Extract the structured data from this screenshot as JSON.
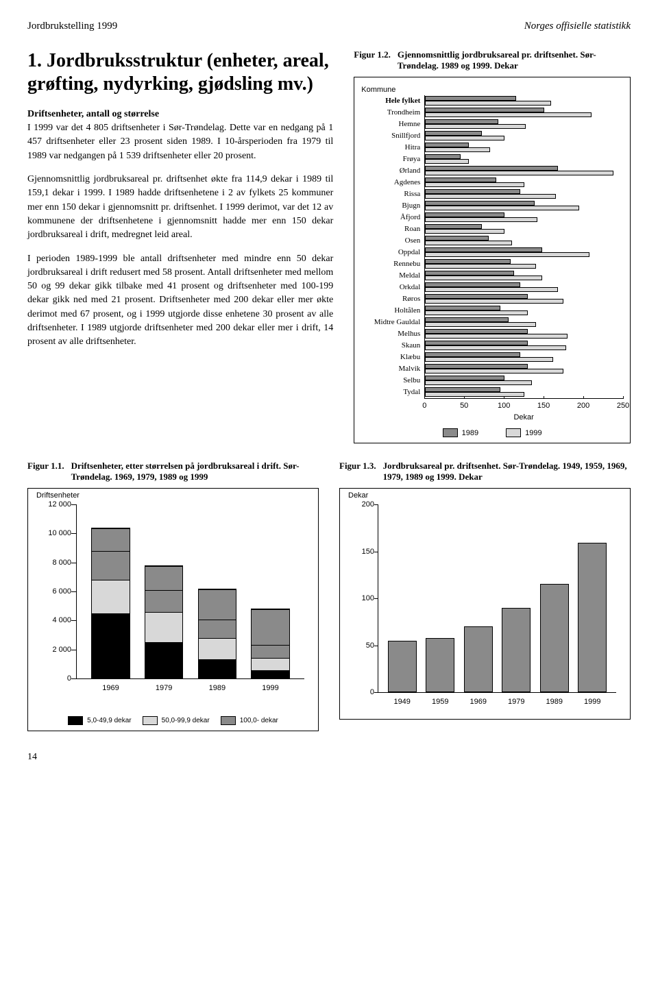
{
  "header": {
    "left": "Jordbrukstelling 1999",
    "right": "Norges offisielle statistikk"
  },
  "title": "1. Jordbruksstruktur (enheter, areal, grøfting, nydyrking, gjødsling mv.)",
  "subhead": "Driftsenheter, antall og størrelse",
  "para1": "I 1999 var det 4 805 driftsenheter i Sør-Trøndelag. Dette var en nedgang på 1 457 driftsenheter eller 23 prosent siden 1989. I 10-årsperioden fra 1979 til 1989 var nedgangen på 1 539 driftsenheter eller 20 prosent.",
  "para2": "Gjennomsnittlig jordbruksareal pr. driftsenhet økte fra 114,9 dekar i 1989 til 159,1 dekar i 1999. I 1989 hadde driftsenhetene i 2 av fylkets 25 kommuner mer enn 150 dekar i gjennomsnitt pr. driftsenhet. I 1999 derimot, var det 12 av kommunene der driftsenhetene i gjennomsnitt hadde mer enn 150 dekar jordbruksareal i drift, medregnet leid areal.",
  "para3": "I perioden 1989-1999 ble antall driftsenheter med mindre enn 50 dekar jordbruksareal i drift redusert med 58 prosent. Antall driftsenheter med mellom 50 og 99 dekar gikk tilbake med 41 prosent og driftsenheter med 100-199 dekar gikk ned med 21 prosent. Driftsenheter med 200 dekar eller mer økte derimot med 67 prosent, og i 1999 utgjorde disse enhetene 30 prosent av alle driftsenheter. I 1989 utgjorde driftsenheter med 200 dekar eller mer i drift, 14 prosent av alle driftsenheter.",
  "fig12": {
    "num": "Figur 1.2.",
    "title": "Gjennomsnittlig jordbruksareal pr. driftsenhet. Sør-Trøndelag. 1989 og 1999. Dekar",
    "ylabel_top": "Kommune",
    "axis_label": "Dekar",
    "max": 250,
    "ticks": [
      0,
      50,
      100,
      150,
      200,
      250
    ],
    "rows": [
      {
        "label": "Hele fylket",
        "v89": 115,
        "v99": 159,
        "bold": true
      },
      {
        "label": "Trondheim",
        "v89": 150,
        "v99": 210
      },
      {
        "label": "Hemne",
        "v89": 92,
        "v99": 127
      },
      {
        "label": "Snillfjord",
        "v89": 72,
        "v99": 100
      },
      {
        "label": "Hitra",
        "v89": 55,
        "v99": 82
      },
      {
        "label": "Frøya",
        "v89": 45,
        "v99": 55
      },
      {
        "label": "Ørland",
        "v89": 168,
        "v99": 238
      },
      {
        "label": "Agdenes",
        "v89": 90,
        "v99": 125
      },
      {
        "label": "Rissa",
        "v89": 120,
        "v99": 165
      },
      {
        "label": "Bjugn",
        "v89": 138,
        "v99": 195
      },
      {
        "label": "Åfjord",
        "v89": 100,
        "v99": 142
      },
      {
        "label": "Roan",
        "v89": 72,
        "v99": 100
      },
      {
        "label": "Osen",
        "v89": 80,
        "v99": 110
      },
      {
        "label": "Oppdal",
        "v89": 148,
        "v99": 208
      },
      {
        "label": "Rennebu",
        "v89": 108,
        "v99": 140
      },
      {
        "label": "Meldal",
        "v89": 112,
        "v99": 148
      },
      {
        "label": "Orkdal",
        "v89": 120,
        "v99": 168
      },
      {
        "label": "Røros",
        "v89": 130,
        "v99": 175
      },
      {
        "label": "Holtålen",
        "v89": 95,
        "v99": 130
      },
      {
        "label": "Midtre Gauldal",
        "v89": 105,
        "v99": 140
      },
      {
        "label": "Melhus",
        "v89": 130,
        "v99": 180
      },
      {
        "label": "Skaun",
        "v89": 130,
        "v99": 178
      },
      {
        "label": "Klæbu",
        "v89": 120,
        "v99": 162
      },
      {
        "label": "Malvik",
        "v89": 130,
        "v99": 175
      },
      {
        "label": "Selbu",
        "v89": 100,
        "v99": 135
      },
      {
        "label": "Tydal",
        "v89": 95,
        "v99": 125
      }
    ],
    "legend": [
      {
        "label": "1989",
        "color": "#8a8a8a"
      },
      {
        "label": "1999",
        "color": "#d8d8d8"
      }
    ]
  },
  "fig11": {
    "num": "Figur 1.1.",
    "title": "Driftsenheter, etter størrelsen på jordbruksareal i drift. Sør-Trøndelag. 1969, 1979, 1989 og 1999",
    "ytitle": "Driftsenheter",
    "ymax": 12000,
    "yticks": [
      0,
      2000,
      4000,
      6000,
      8000,
      10000,
      12000
    ],
    "yticklabels": [
      "0",
      "2 000",
      "4 000",
      "6 000",
      "8 000",
      "10 000",
      "12 000"
    ],
    "bars": [
      {
        "year": "1969",
        "segs": [
          {
            "v": 4500,
            "c": "#000000"
          },
          {
            "v": 2300,
            "c": "#d8d8d8"
          },
          {
            "v": 2000,
            "c": "#8a8a8a"
          },
          {
            "v": 1600,
            "c": "#8a8a8a"
          }
        ]
      },
      {
        "year": "1979",
        "segs": [
          {
            "v": 2500,
            "c": "#000000"
          },
          {
            "v": 2100,
            "c": "#d8d8d8"
          },
          {
            "v": 1500,
            "c": "#8a8a8a"
          },
          {
            "v": 1700,
            "c": "#8a8a8a"
          }
        ]
      },
      {
        "year": "1989",
        "segs": [
          {
            "v": 1300,
            "c": "#000000"
          },
          {
            "v": 1500,
            "c": "#d8d8d8"
          },
          {
            "v": 1300,
            "c": "#8a8a8a"
          },
          {
            "v": 2100,
            "c": "#8a8a8a"
          }
        ]
      },
      {
        "year": "1999",
        "segs": [
          {
            "v": 550,
            "c": "#000000"
          },
          {
            "v": 850,
            "c": "#d8d8d8"
          },
          {
            "v": 900,
            "c": "#8a8a8a"
          },
          {
            "v": 2500,
            "c": "#8a8a8a"
          }
        ]
      }
    ],
    "legend": [
      {
        "label": "5,0-49,9 dekar",
        "color": "#000000"
      },
      {
        "label": "50,0-99,9 dekar",
        "color": "#d8d8d8"
      },
      {
        "label": "100,0- dekar",
        "color": "#8a8a8a"
      }
    ]
  },
  "fig13": {
    "num": "Figur 1.3.",
    "title": "Jordbruksareal pr. driftsenhet. Sør-Trøndelag. 1949, 1959, 1969, 1979, 1989 og 1999. Dekar",
    "ytitle": "Dekar",
    "ymax": 200,
    "yticks": [
      0,
      50,
      100,
      150,
      200
    ],
    "bars": [
      {
        "year": "1949",
        "v": 55
      },
      {
        "year": "1959",
        "v": 58
      },
      {
        "year": "1969",
        "v": 70
      },
      {
        "year": "1979",
        "v": 90
      },
      {
        "year": "1989",
        "v": 115
      },
      {
        "year": "1999",
        "v": 159
      }
    ]
  },
  "pagenum": "14"
}
